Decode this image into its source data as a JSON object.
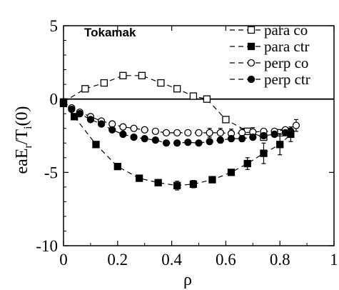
{
  "chart_data": {
    "type": "line",
    "annotation": "Tokamak",
    "xlabel": "ρ",
    "ylabel_main": "eaE",
    "ylabel_sub1": "r",
    "ylabel_mid": "/T",
    "ylabel_sub2": "i",
    "ylabel_end": "(0)",
    "xlim": [
      0,
      1
    ],
    "ylim": [
      -10,
      5
    ],
    "x_ticks": [
      {
        "value": 0,
        "label": "0"
      },
      {
        "value": 0.2,
        "label": "0.2"
      },
      {
        "value": 0.4,
        "label": "0.4"
      },
      {
        "value": 0.6,
        "label": "0.6"
      },
      {
        "value": 0.8,
        "label": "0.8"
      },
      {
        "value": 1,
        "label": "1"
      }
    ],
    "y_ticks": [
      {
        "value": 5,
        "label": "5"
      },
      {
        "value": 0,
        "label": "0"
      },
      {
        "value": -5,
        "label": "-5"
      },
      {
        "value": -10,
        "label": "-10"
      }
    ],
    "zero_line": true,
    "legend_position": "top-right",
    "series": [
      {
        "name": "para co",
        "marker": "open-square",
        "x": [
          0.0,
          0.08,
          0.15,
          0.22,
          0.29,
          0.36,
          0.42,
          0.48,
          0.53,
          0.6,
          0.68,
          0.74,
          0.8
        ],
        "y": [
          -0.2,
          0.7,
          1.1,
          1.6,
          1.6,
          1.1,
          0.7,
          0.2,
          0.0,
          -1.4,
          -2.2,
          -2.6,
          -2.3
        ]
      },
      {
        "name": "para ctr",
        "marker": "filled-square",
        "x": [
          0.0,
          0.04,
          0.12,
          0.2,
          0.28,
          0.35,
          0.42,
          0.48,
          0.55,
          0.62,
          0.68,
          0.74,
          0.8,
          0.84
        ],
        "y": [
          -0.3,
          -1.2,
          -3.1,
          -4.6,
          -5.4,
          -5.7,
          -5.9,
          -5.8,
          -5.5,
          -5.0,
          -4.4,
          -3.7,
          -3.1,
          -2.4
        ],
        "y_err": [
          0,
          0,
          0,
          0,
          0,
          0,
          0.3,
          0.25,
          0,
          0,
          0.4,
          0.7,
          0.7,
          0.5
        ]
      },
      {
        "name": "perp co",
        "marker": "open-circle",
        "x": [
          0.0,
          0.03,
          0.06,
          0.1,
          0.14,
          0.18,
          0.22,
          0.26,
          0.3,
          0.34,
          0.38,
          0.42,
          0.46,
          0.5,
          0.54,
          0.58,
          0.62,
          0.66,
          0.7,
          0.74,
          0.78,
          0.82,
          0.86
        ],
        "y": [
          -0.2,
          -0.6,
          -0.9,
          -1.2,
          -1.5,
          -1.7,
          -1.9,
          -2.0,
          -2.1,
          -2.2,
          -2.3,
          -2.3,
          -2.3,
          -2.3,
          -2.3,
          -2.3,
          -2.35,
          -2.3,
          -2.25,
          -2.2,
          -2.2,
          -2.1,
          -1.8
        ],
        "y_err": [
          0,
          0,
          0,
          0,
          0,
          0,
          0,
          0,
          0,
          0,
          0,
          0,
          0,
          0,
          0.3,
          0.3,
          0.3,
          0.3,
          0.3,
          0,
          0,
          0,
          0.4
        ]
      },
      {
        "name": "perp ctr",
        "marker": "filled-circle",
        "x": [
          0.0,
          0.03,
          0.06,
          0.1,
          0.14,
          0.18,
          0.22,
          0.26,
          0.3,
          0.34,
          0.38,
          0.42,
          0.46,
          0.5,
          0.54,
          0.58,
          0.62,
          0.66,
          0.7,
          0.74,
          0.78,
          0.82,
          0.84
        ],
        "y": [
          -0.2,
          -0.7,
          -1.0,
          -1.4,
          -1.7,
          -2.1,
          -2.4,
          -2.6,
          -2.7,
          -2.8,
          -3.0,
          -3.0,
          -2.95,
          -3.0,
          -2.9,
          -2.8,
          -2.7,
          -2.7,
          -2.6,
          -2.5,
          -2.4,
          -2.3,
          -2.2
        ],
        "y_err": [
          0,
          0,
          0,
          0,
          0,
          0,
          0,
          0,
          0,
          0,
          0,
          0,
          0,
          0,
          0,
          0.2,
          0.2,
          0.2,
          0,
          0,
          0,
          0,
          0.2
        ]
      }
    ]
  }
}
